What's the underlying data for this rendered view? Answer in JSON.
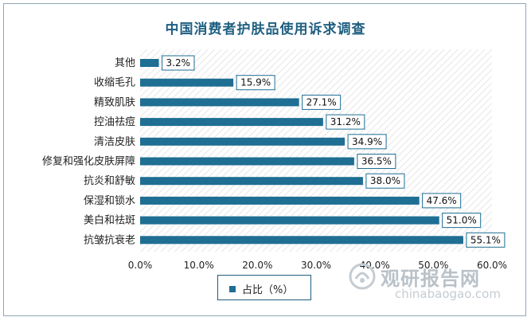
{
  "title": "中国消费者护肤品使用诉求调查",
  "legend": {
    "label": "占比（%）"
  },
  "watermark": {
    "cn": "观研报告网",
    "en": "chinabaogao.com"
  },
  "colors": {
    "bar": "#1f6e93",
    "label_border": "#1f6e93",
    "title": "#1f5f80",
    "stripes": "#e6e6e6"
  },
  "chart_data": {
    "type": "bar",
    "orientation": "horizontal",
    "title": "中国消费者护肤品使用诉求调查",
    "xlabel": "",
    "ylabel": "",
    "xlim": [
      0,
      60
    ],
    "x_ticks": [
      "0.0%",
      "10.0%",
      "20.0%",
      "30.0%",
      "40.0%",
      "50.0%",
      "60.0%"
    ],
    "categories": [
      "其他",
      "收缩毛孔",
      "精致肌肤",
      "控油祛痘",
      "清洁皮肤",
      "修复和强化皮肤屏障",
      "抗炎和舒敏",
      "保湿和锁水",
      "美白和祛斑",
      "抗皱抗衰老"
    ],
    "series": [
      {
        "name": "占比（%）",
        "values": [
          3.2,
          15.9,
          27.1,
          31.2,
          34.9,
          36.5,
          38.0,
          47.6,
          51.0,
          55.1
        ],
        "labels": [
          "3.2%",
          "15.9%",
          "27.1%",
          "31.2%",
          "34.9%",
          "36.5%",
          "38.0%",
          "47.6%",
          "51.0%",
          "55.1%"
        ]
      }
    ],
    "grid": false,
    "legend_position": "bottom"
  }
}
